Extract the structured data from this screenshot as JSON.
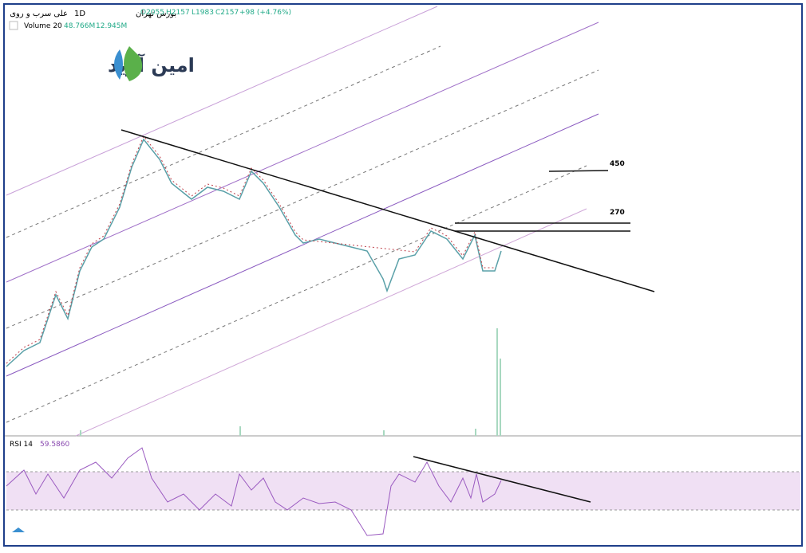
{
  "header": {
    "symbol": "علی سرب و روی",
    "interval": "1D",
    "exchange": "بورس تهران",
    "open": "O2055",
    "high": "H2157",
    "low": "L1983",
    "close": "C2157",
    "change": "+98 (+4.76%)"
  },
  "volume": {
    "label": "Volume 20",
    "value1": "48.766M",
    "value2": "12.945M"
  },
  "logo": "امین آوید",
  "levels": [
    "450",
    "270"
  ],
  "rsi": {
    "label": "RSI 14",
    "value": "59.5860"
  }
}
